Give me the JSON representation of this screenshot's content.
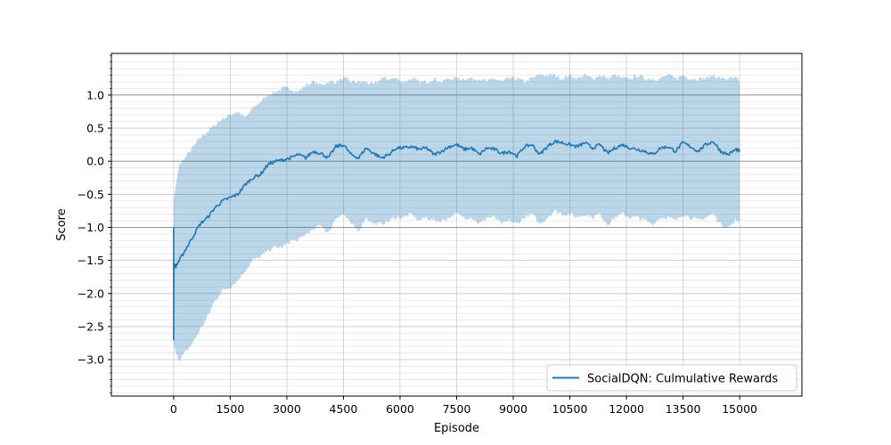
{
  "chart_data": {
    "type": "line",
    "title": "",
    "xlabel": "Episode",
    "ylabel": "Score",
    "xlim": [
      -1650,
      16650
    ],
    "ylim": [
      -3.55,
      1.63
    ],
    "xticks": [
      0,
      1500,
      3000,
      4500,
      6000,
      7500,
      9000,
      10500,
      12000,
      13500,
      15000
    ],
    "xtick_labels": [
      "0",
      "1500",
      "3000",
      "4500",
      "6000",
      "7500",
      "9000",
      "10500",
      "12000",
      "13500",
      "15000"
    ],
    "yticks": [
      -3.0,
      -2.5,
      -2.0,
      -1.5,
      -1.0,
      -0.5,
      0.0,
      0.5,
      1.0
    ],
    "ytick_labels": [
      "−3.0",
      "−2.5",
      "−2.0",
      "−1.5",
      "−1.0",
      "−0.5",
      "0.0",
      "0.5",
      "1.0"
    ],
    "y_minor_step": 0.1,
    "grid": true,
    "highlight_lines_y": [
      -1.0,
      0.0,
      1.0
    ],
    "legend_position": "lower-right",
    "series": [
      {
        "name": "SocialDQN: Culmulative Rewards",
        "color": "#1f77b4",
        "band_color": "#1f77b4",
        "band_opacity": 0.3,
        "x": [
          0,
          50,
          150,
          300,
          500,
          700,
          900,
          1100,
          1300,
          1500,
          1700,
          1900,
          2100,
          2300,
          2500,
          2700,
          2900,
          3100,
          3300,
          3500,
          3700,
          3900,
          4100,
          4300,
          4500,
          4700,
          4900,
          5100,
          5300,
          5500,
          5700,
          5900,
          6100,
          6300,
          6500,
          6700,
          6900,
          7100,
          7300,
          7500,
          7700,
          7900,
          8100,
          8300,
          8500,
          8700,
          8900,
          9100,
          9300,
          9500,
          9700,
          9900,
          10100,
          10300,
          10500,
          10700,
          10900,
          11100,
          11300,
          11500,
          11700,
          11900,
          12100,
          12300,
          12500,
          12700,
          12900,
          13100,
          13300,
          13500,
          13700,
          13900,
          14100,
          14300,
          14500,
          14700,
          14900,
          15000
        ],
        "y": [
          -1.55,
          -1.6,
          -1.5,
          -1.35,
          -1.15,
          -0.95,
          -0.85,
          -0.7,
          -0.6,
          -0.55,
          -0.5,
          -0.35,
          -0.25,
          -0.2,
          -0.05,
          0.0,
          0.02,
          0.05,
          0.1,
          0.05,
          0.15,
          0.12,
          0.05,
          0.22,
          0.25,
          0.1,
          0.05,
          0.2,
          0.12,
          0.05,
          0.1,
          0.2,
          0.2,
          0.22,
          0.18,
          0.2,
          0.1,
          0.15,
          0.22,
          0.25,
          0.18,
          0.2,
          0.1,
          0.2,
          0.18,
          0.12,
          0.15,
          0.08,
          0.22,
          0.25,
          0.1,
          0.22,
          0.3,
          0.28,
          0.25,
          0.22,
          0.28,
          0.2,
          0.25,
          0.12,
          0.2,
          0.25,
          0.2,
          0.18,
          0.15,
          0.1,
          0.2,
          0.22,
          0.15,
          0.28,
          0.22,
          0.15,
          0.25,
          0.3,
          0.15,
          0.1,
          0.18,
          0.15
        ],
        "upper": [
          -0.6,
          -0.4,
          -0.05,
          0.05,
          0.2,
          0.35,
          0.45,
          0.55,
          0.65,
          0.7,
          0.75,
          0.65,
          0.8,
          0.9,
          1.0,
          1.05,
          1.1,
          1.1,
          1.05,
          1.15,
          1.2,
          1.15,
          1.2,
          1.2,
          1.25,
          1.2,
          1.2,
          1.2,
          1.15,
          1.25,
          1.25,
          1.25,
          1.2,
          1.25,
          1.2,
          1.2,
          1.25,
          1.2,
          1.25,
          1.25,
          1.25,
          1.25,
          1.25,
          1.2,
          1.25,
          1.2,
          1.25,
          1.25,
          1.2,
          1.25,
          1.3,
          1.3,
          1.3,
          1.25,
          1.3,
          1.25,
          1.3,
          1.25,
          1.3,
          1.25,
          1.3,
          1.25,
          1.25,
          1.3,
          1.25,
          1.25,
          1.25,
          1.3,
          1.25,
          1.3,
          1.25,
          1.25,
          1.25,
          1.3,
          1.25,
          1.25,
          1.25,
          1.2
        ],
        "lower": [
          -2.75,
          -2.9,
          -3.0,
          -2.9,
          -2.75,
          -2.55,
          -2.35,
          -2.1,
          -1.95,
          -1.9,
          -1.8,
          -1.65,
          -1.5,
          -1.45,
          -1.35,
          -1.3,
          -1.3,
          -1.2,
          -1.2,
          -1.1,
          -1.05,
          -0.95,
          -1.1,
          -0.85,
          -0.8,
          -0.95,
          -1.05,
          -0.85,
          -0.95,
          -0.95,
          -0.9,
          -0.85,
          -0.85,
          -0.8,
          -0.9,
          -0.85,
          -0.9,
          -0.9,
          -0.85,
          -0.8,
          -0.85,
          -0.85,
          -0.95,
          -0.85,
          -0.85,
          -0.95,
          -0.9,
          -0.95,
          -0.85,
          -0.8,
          -0.95,
          -0.85,
          -0.75,
          -0.8,
          -0.8,
          -0.85,
          -0.8,
          -0.85,
          -0.8,
          -0.95,
          -0.85,
          -0.8,
          -0.85,
          -0.85,
          -0.9,
          -0.95,
          -0.85,
          -0.85,
          -0.9,
          -0.8,
          -0.85,
          -0.9,
          -0.85,
          -0.8,
          -0.95,
          -1.0,
          -0.9,
          -0.9
        ]
      }
    ]
  }
}
